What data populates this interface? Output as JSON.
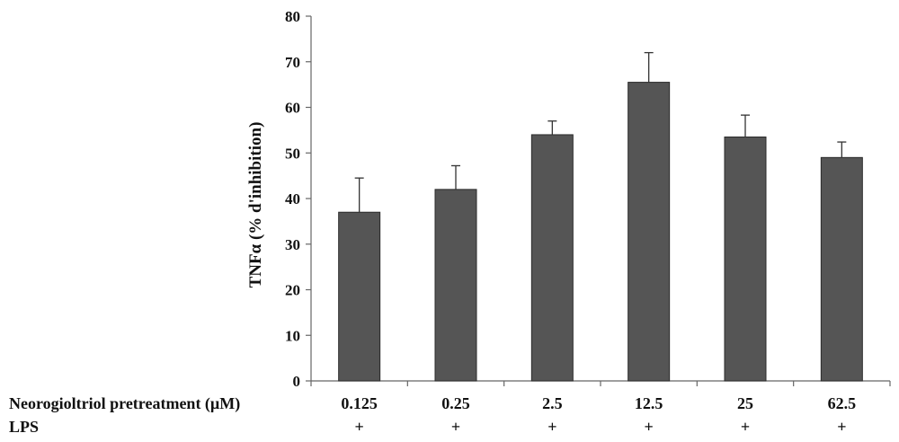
{
  "chart_data": {
    "type": "bar",
    "title": "",
    "ylabel": "TNFα (% d'inhibition)",
    "ylim": [
      0,
      80
    ],
    "yticks": [
      "0",
      "10",
      "20",
      "30",
      "40",
      "50",
      "60",
      "70",
      "80"
    ],
    "categories": [
      "0.125",
      "0.25",
      "2.5",
      "12.5",
      "25",
      "62.5"
    ],
    "values": [
      37,
      42,
      54,
      65.5,
      53.5,
      49
    ],
    "errors": [
      7.5,
      5.2,
      3,
      6.5,
      4.8,
      3.4
    ],
    "rows": [
      {
        "label": "Neorogioltriol pretreatment (µM)",
        "values": [
          "0.125",
          "0.25",
          "2.5",
          "12.5",
          "25",
          "62.5"
        ]
      },
      {
        "label": "LPS",
        "values": [
          "+",
          "+",
          "+",
          "+",
          "+",
          "+"
        ]
      }
    ],
    "colors": {
      "bar": "#555555",
      "bar_edge": "#2a2a2a",
      "axis": "#666666",
      "error": "#333333"
    }
  }
}
